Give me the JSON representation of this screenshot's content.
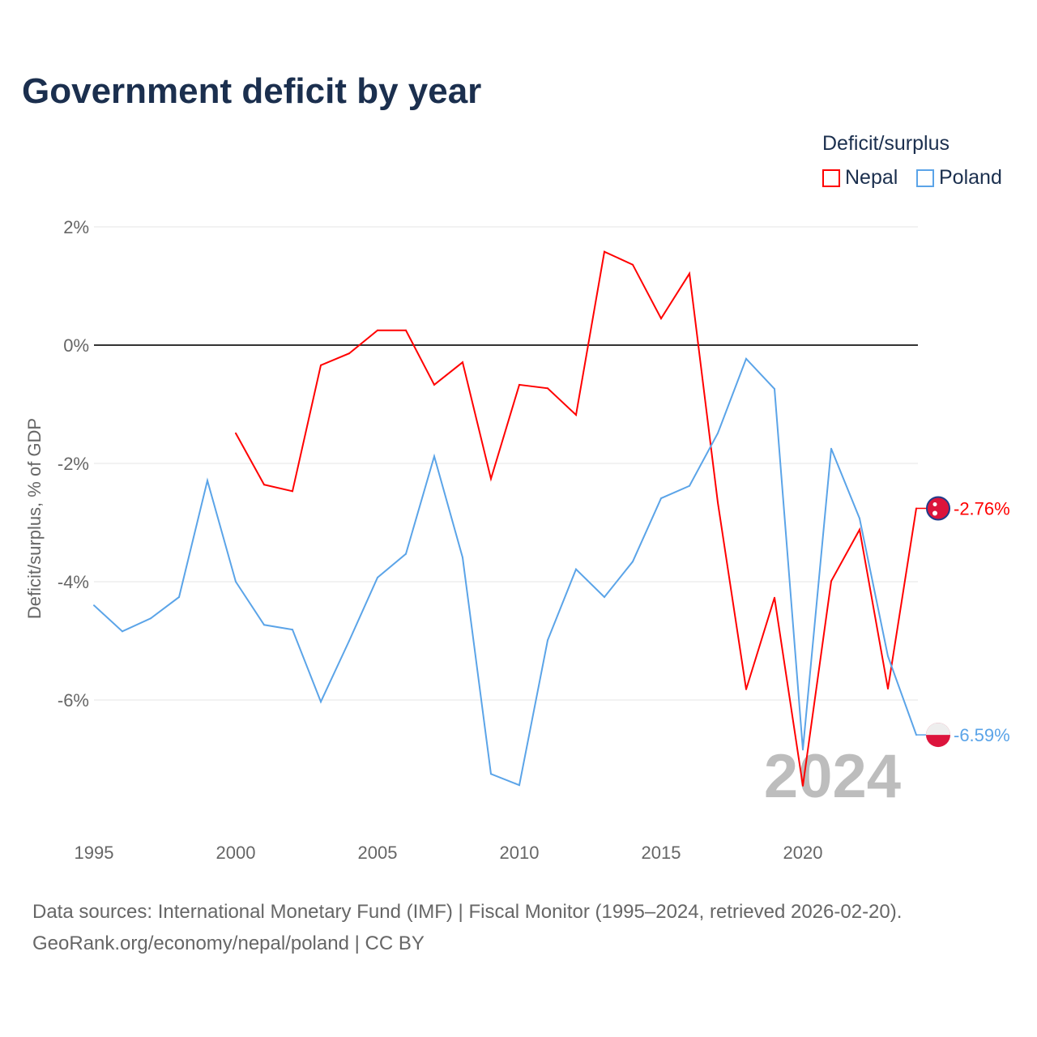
{
  "title": "Government deficit by year",
  "legend": {
    "title": "Deficit/surplus",
    "items": [
      {
        "name": "Nepal",
        "color": "#ff0000"
      },
      {
        "name": "Poland",
        "color": "#5ba4e8"
      }
    ]
  },
  "watermark_year": "2024",
  "footer": {
    "line1": "Data sources: International Monetary Fund (IMF) | Fiscal Monitor (1995–2024, retrieved 2026-02-20).",
    "line2": "GeoRank.org/economy/nepal/poland | CC BY"
  },
  "chart_data": {
    "type": "line",
    "title": "Government deficit by year",
    "xlabel": "",
    "ylabel": "Deficit/surplus, % of GDP",
    "xlim": [
      1995,
      2024
    ],
    "ylim": [
      -8,
      2
    ],
    "xticks": [
      1995,
      2000,
      2005,
      2010,
      2015,
      2020
    ],
    "xtick_labels": [
      "1995",
      "2000",
      "2005",
      "2010",
      "2015",
      "2020"
    ],
    "yticks": [
      2,
      0,
      -2,
      -4,
      -6
    ],
    "ytick_labels": [
      "2%",
      "0%",
      "-2%",
      "-4%",
      "-6%"
    ],
    "grid": true,
    "legend_position": "top-right",
    "series": [
      {
        "name": "Nepal",
        "color": "#ff0000",
        "end_label": "-2.76%",
        "x": [
          2000,
          2001,
          2002,
          2003,
          2004,
          2005,
          2006,
          2007,
          2008,
          2009,
          2010,
          2011,
          2012,
          2013,
          2014,
          2015,
          2016,
          2017,
          2018,
          2019,
          2020,
          2021,
          2022,
          2023,
          2024
        ],
        "values": [
          -1.49,
          -2.36,
          -2.47,
          -0.34,
          -0.14,
          0.25,
          0.25,
          -0.67,
          -0.29,
          -2.26,
          -0.67,
          -0.73,
          -1.18,
          1.58,
          1.36,
          0.45,
          1.21,
          -2.66,
          -5.82,
          -4.27,
          -7.45,
          -3.99,
          -3.12,
          -5.81,
          -2.76
        ]
      },
      {
        "name": "Poland",
        "color": "#5ba4e8",
        "end_label": "-6.59%",
        "x": [
          1995,
          1996,
          1997,
          1998,
          1999,
          2000,
          2001,
          2002,
          2003,
          2004,
          2005,
          2006,
          2007,
          2008,
          2009,
          2010,
          2011,
          2012,
          2013,
          2014,
          2015,
          2016,
          2017,
          2018,
          2019,
          2020,
          2021,
          2022,
          2023,
          2024
        ],
        "values": [
          -4.4,
          -4.84,
          -4.62,
          -4.26,
          -2.29,
          -4.0,
          -4.73,
          -4.81,
          -6.03,
          -5.0,
          -3.93,
          -3.53,
          -1.88,
          -3.59,
          -7.25,
          -7.44,
          -4.99,
          -3.79,
          -4.26,
          -3.66,
          -2.59,
          -2.38,
          -1.49,
          -0.23,
          -0.74,
          -6.84,
          -1.75,
          -2.93,
          -5.26,
          -6.59
        ]
      }
    ]
  }
}
